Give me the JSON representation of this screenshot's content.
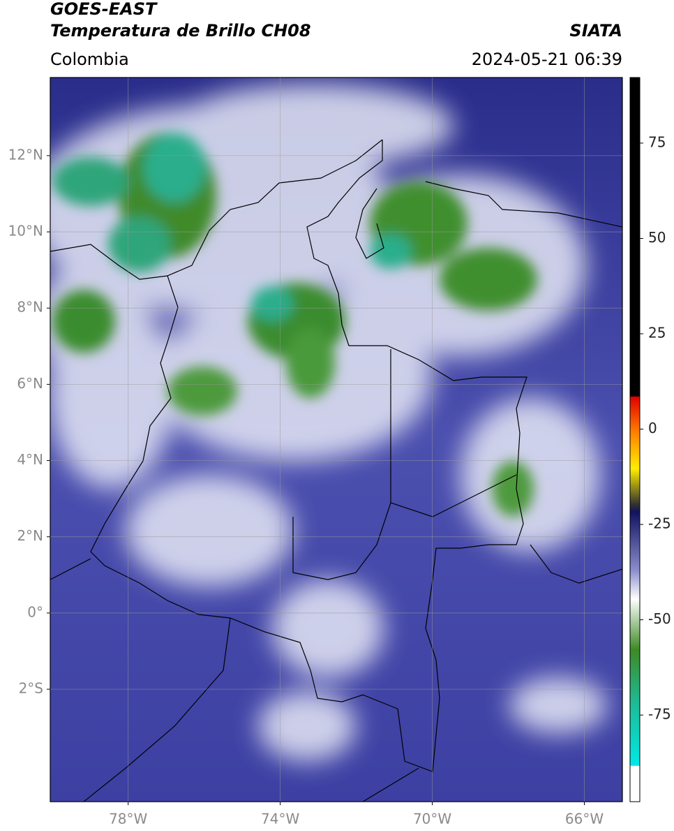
{
  "header": {
    "title": "GOES-EAST",
    "subtitle": "Temperatura de Brillo CH08",
    "source": "SIATA",
    "region": "Colombia",
    "datetime": "2024-05-21 06:39"
  },
  "map": {
    "xlim": [
      -80.05,
      -65
    ],
    "ylim": [
      -4.95,
      14.05
    ],
    "grid": true,
    "xticks": [
      {
        "value": -78,
        "label": "78°W"
      },
      {
        "value": -74,
        "label": "74°W"
      },
      {
        "value": -70,
        "label": "70°W"
      },
      {
        "value": -66,
        "label": "66°W"
      }
    ],
    "yticks": [
      {
        "value": 12,
        "label": "12°N"
      },
      {
        "value": 10,
        "label": "10°N"
      },
      {
        "value": 8,
        "label": "8°N"
      },
      {
        "value": 6,
        "label": "6°N"
      },
      {
        "value": 4,
        "label": "4°N"
      },
      {
        "value": 2,
        "label": "2°N"
      },
      {
        "value": 0,
        "label": "0°"
      },
      {
        "value": -2,
        "label": "2°S"
      }
    ]
  },
  "colorbar": {
    "lim": [
      -97.7,
      92.2
    ],
    "ticks": [
      75,
      50,
      25,
      0,
      -25,
      -50,
      -75
    ]
  }
}
